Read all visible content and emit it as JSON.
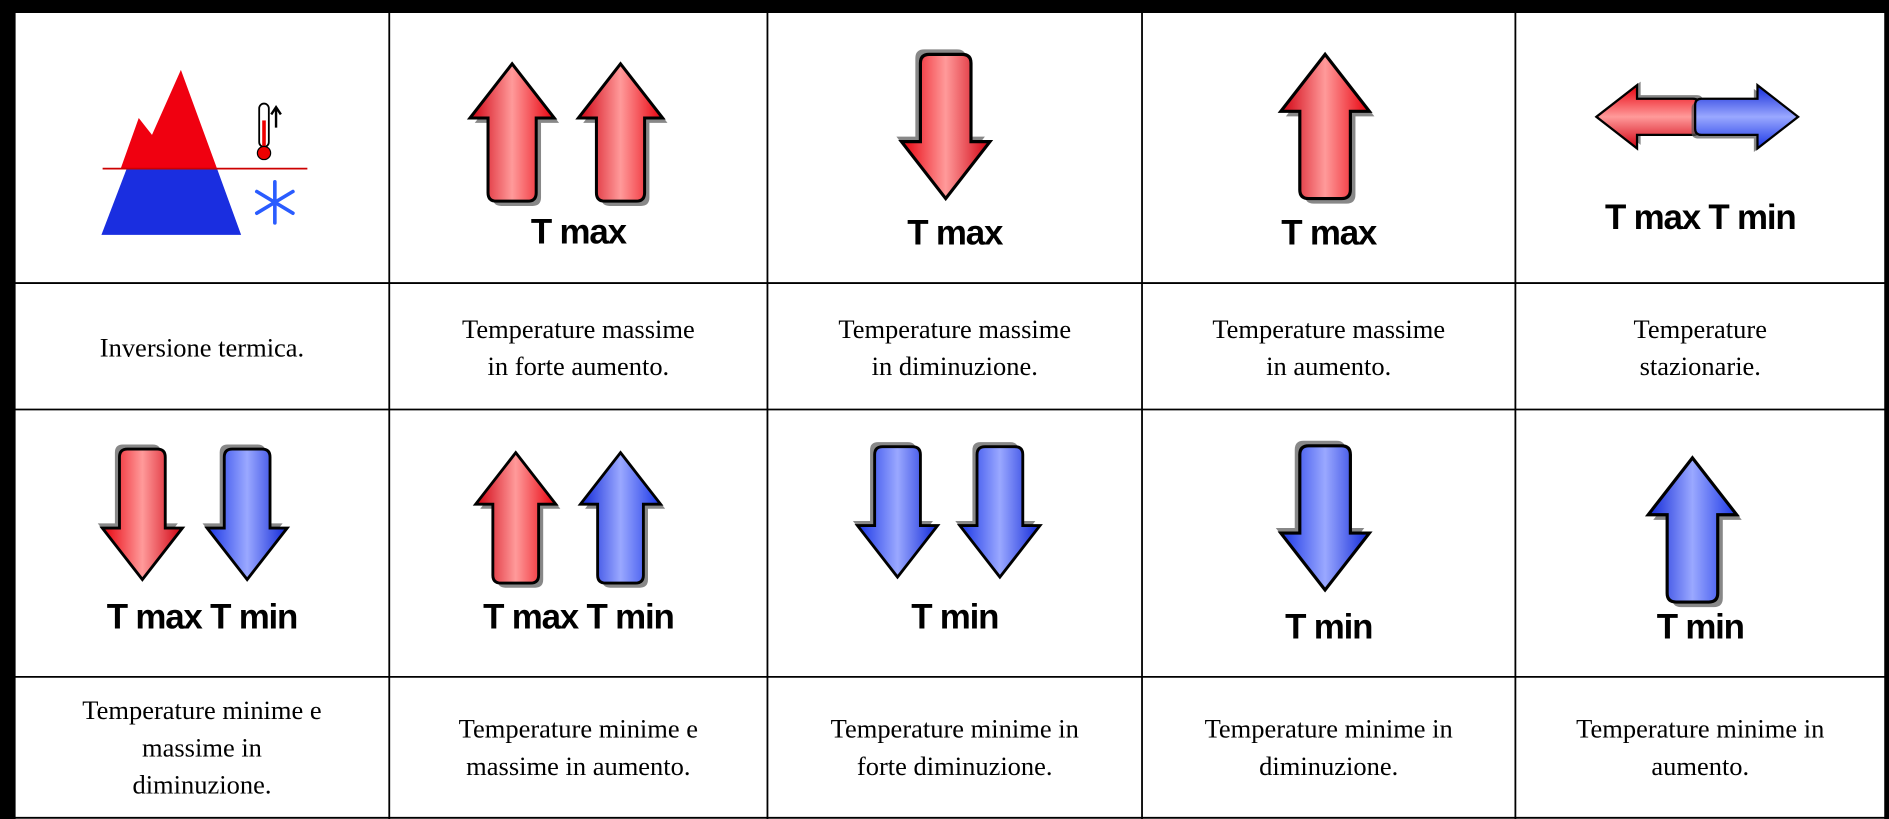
{
  "cells": [
    {
      "caption": [
        "Inversione termica."
      ]
    },
    {
      "label": "T max",
      "caption": [
        "Temperature massime",
        "in forte aumento."
      ]
    },
    {
      "label": "T max",
      "caption": [
        "Temperature massime",
        "in diminuzione."
      ]
    },
    {
      "label": "T max",
      "caption": [
        "Temperature massime",
        "in aumento."
      ]
    },
    {
      "label": "T max T min",
      "caption": [
        "Temperature",
        "stazionarie."
      ]
    },
    {
      "label": "T max T min",
      "caption": [
        "Temperature minime e",
        "massime in",
        "diminuzione."
      ]
    },
    {
      "label": "T max T min",
      "caption": [
        "Temperature minime e",
        "massime in aumento."
      ]
    },
    {
      "label": "T min",
      "caption": [
        "Temperature minime in",
        "forte diminuzione."
      ]
    },
    {
      "label": "T min",
      "caption": [
        "Temperature minime in",
        "diminuzione."
      ]
    },
    {
      "label": "T min",
      "caption": [
        "Temperature minime in",
        "aumento."
      ]
    }
  ]
}
